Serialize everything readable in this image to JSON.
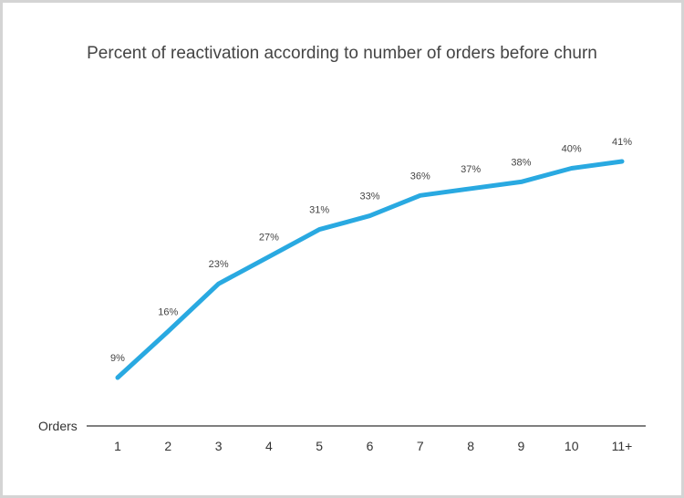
{
  "chart_data": {
    "type": "line",
    "title": "Percent of reactivation according to number of orders before churn",
    "xlabel": "Orders",
    "ylabel": "",
    "categories": [
      "1",
      "2",
      "3",
      "4",
      "5",
      "6",
      "7",
      "8",
      "9",
      "10",
      "11+"
    ],
    "series": [
      {
        "values": [
          9,
          16,
          23,
          27,
          31,
          33,
          36,
          37,
          38,
          40,
          41
        ],
        "labels": [
          "9%",
          "16%",
          "23%",
          "27%",
          "31%",
          "33%",
          "36%",
          "37%",
          "38%",
          "40%",
          "41%"
        ]
      }
    ],
    "ylim": [
      0,
      45
    ],
    "grid": false,
    "legend": "none",
    "colors": {
      "line": "#29a9e1",
      "axis": "#555555",
      "border": "#d4d4d4"
    }
  }
}
